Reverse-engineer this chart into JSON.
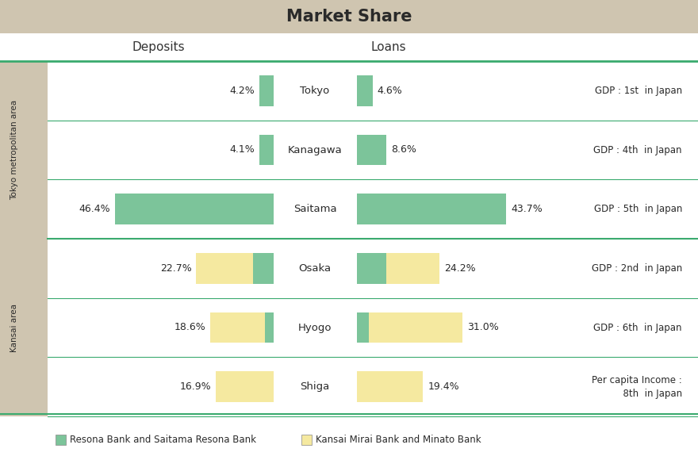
{
  "title": "Market Share",
  "title_bg": "#cfc5b0",
  "background": "#ffffff",
  "green_color": "#7cc49a",
  "yellow_color": "#f5e9a0",
  "line_color": "#3aaa6e",
  "header_line_color": "#3aaa6e",
  "rows": [
    {
      "region": "Tokyo",
      "city": "Tokyo",
      "deposit_pct": 4.2,
      "deposit_color": "green",
      "deposit_green_pct": 4.2,
      "deposit_yellow_pct": 0,
      "loan_pct": 4.6,
      "loan_color": "green",
      "loan_green_pct": 4.6,
      "loan_yellow_pct": 0,
      "gdp_note": "GDP : 1st  in Japan"
    },
    {
      "region": "Tokyo",
      "city": "Kanagawa",
      "deposit_pct": 4.1,
      "deposit_color": "green",
      "deposit_green_pct": 4.1,
      "deposit_yellow_pct": 0,
      "loan_pct": 8.6,
      "loan_color": "green",
      "loan_green_pct": 8.6,
      "loan_yellow_pct": 0,
      "gdp_note": "GDP : 4th  in Japan"
    },
    {
      "region": "Tokyo",
      "city": "Saitama",
      "deposit_pct": 46.4,
      "deposit_color": "green",
      "deposit_green_pct": 46.4,
      "deposit_yellow_pct": 0,
      "loan_pct": 43.7,
      "loan_color": "green",
      "loan_green_pct": 43.7,
      "loan_yellow_pct": 0,
      "gdp_note": "GDP : 5th  in Japan"
    },
    {
      "region": "Kansai",
      "city": "Osaka",
      "deposit_pct": 22.7,
      "deposit_color": "mixed",
      "deposit_yellow_pct": 16.7,
      "deposit_green_pct": 6.0,
      "loan_pct": 24.2,
      "loan_color": "mixed",
      "loan_green_pct": 8.5,
      "loan_yellow_pct": 15.7,
      "gdp_note": "GDP : 2nd  in Japan"
    },
    {
      "region": "Kansai",
      "city": "Hyogo",
      "deposit_pct": 18.6,
      "deposit_color": "mixed",
      "deposit_yellow_pct": 16.1,
      "deposit_green_pct": 2.5,
      "loan_pct": 31.0,
      "loan_color": "mixed",
      "loan_green_pct": 3.5,
      "loan_yellow_pct": 27.5,
      "gdp_note": "GDP : 6th  in Japan"
    },
    {
      "region": "Kansai",
      "city": "Shiga",
      "deposit_pct": 16.9,
      "deposit_color": "yellow",
      "deposit_yellow_pct": 16.9,
      "deposit_green_pct": 0,
      "loan_pct": 19.4,
      "loan_color": "yellow",
      "loan_green_pct": 0,
      "loan_yellow_pct": 19.4,
      "gdp_note": "Per capita Income :\n  8th  in Japan"
    }
  ]
}
